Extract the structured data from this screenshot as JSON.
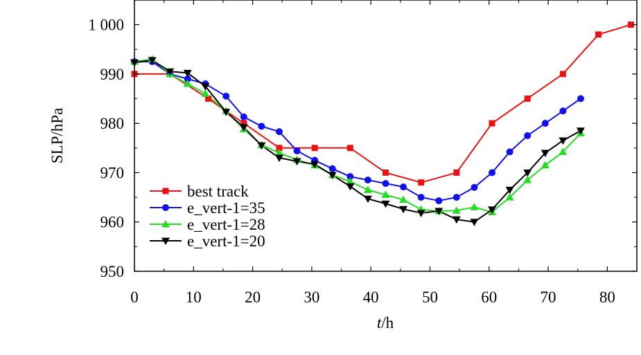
{
  "chart_data": {
    "type": "line",
    "xlabel_italic": "t",
    "xlabel_unit": "/h",
    "ylabel": "SLP/hPa",
    "xlim": [
      0,
      85
    ],
    "ylim": [
      950,
      1005
    ],
    "x_ticks": [
      0,
      10,
      20,
      30,
      40,
      50,
      60,
      70,
      80
    ],
    "x_tick_labels": [
      "0",
      "10",
      "20",
      "30",
      "40",
      "50",
      "60",
      "70",
      "80"
    ],
    "y_ticks": [
      950,
      960,
      970,
      980,
      990,
      1000
    ],
    "y_tick_labels": [
      "950",
      "960",
      "970",
      "980",
      "990",
      "1 000"
    ],
    "grid": false,
    "legend_position": "bottom-left",
    "series": [
      {
        "name": "best track",
        "color": "#ee1111",
        "marker": "square",
        "x": [
          0,
          6,
          12.5,
          18.5,
          24.5,
          30.5,
          36.5,
          42.5,
          48.5,
          54.5,
          60.5,
          66.5,
          72.5,
          78.5,
          84
        ],
        "y": [
          990,
          990,
          985,
          980,
          975,
          975,
          975,
          970,
          968,
          970,
          980,
          985,
          990,
          998,
          1000
        ]
      },
      {
        "name": "e_vert-1=35",
        "color": "#1111ee",
        "marker": "circle",
        "x": [
          0,
          3,
          6,
          9,
          12,
          15.5,
          18.5,
          21.5,
          24.5,
          27.5,
          30.5,
          33.5,
          36.5,
          39.5,
          42.5,
          45.5,
          48.5,
          51.5,
          54.5,
          57.5,
          60.5,
          63.5,
          66.5,
          69.5,
          72.5,
          75.5
        ],
        "y": [
          992.5,
          992.5,
          990,
          989,
          988,
          985.5,
          981.3,
          979.4,
          978.3,
          974.4,
          972.5,
          970.8,
          969.2,
          968.5,
          967.8,
          967.1,
          965,
          964.3,
          965,
          967,
          970,
          974.2,
          977.5,
          980,
          982.5,
          985
        ]
      },
      {
        "name": "e_vert-1=28",
        "color": "#22dd22",
        "marker": "triangle-up",
        "x": [
          0,
          3,
          6,
          9,
          12,
          15.5,
          18.5,
          21.5,
          24.5,
          27.5,
          30.5,
          33.5,
          36.5,
          39.5,
          42.5,
          45.5,
          48.5,
          51.5,
          54.5,
          57.5,
          60.5,
          63.5,
          66.5,
          69.5,
          72.5,
          75.5
        ],
        "y": [
          992.5,
          993,
          990,
          988,
          986,
          982.5,
          978.8,
          975.6,
          974,
          972.6,
          971.5,
          969.5,
          968.2,
          966.5,
          965.5,
          964.5,
          962.5,
          962.2,
          962.3,
          963,
          962,
          965,
          968.5,
          971.5,
          974.2,
          978
        ]
      },
      {
        "name": "e_vert-1=20",
        "color": "#000000",
        "marker": "triangle-down",
        "x": [
          0,
          3,
          6,
          9,
          12,
          15.5,
          18.5,
          21.5,
          24.5,
          27.5,
          30.5,
          33.5,
          36.5,
          39.5,
          42.5,
          45.5,
          48.5,
          51.5,
          54.5,
          57.5,
          60.5,
          63.5,
          66.5,
          69.5,
          72.5,
          75.5
        ],
        "y": [
          992.3,
          992.8,
          990.5,
          990.2,
          987.5,
          982.3,
          979.2,
          975.5,
          973,
          972.3,
          971.7,
          969.5,
          967.2,
          964.7,
          963.7,
          962.6,
          961.8,
          962.2,
          960.5,
          960,
          962.5,
          966.5,
          970,
          974,
          976.5,
          978.5
        ]
      }
    ]
  }
}
